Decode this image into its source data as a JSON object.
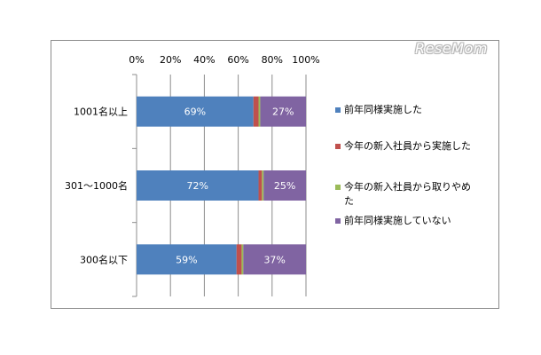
{
  "watermark": "ReseMom",
  "chart_data": {
    "type": "bar",
    "orientation": "horizontal",
    "stacked": true,
    "categories": [
      "1001名以上",
      "301～1000名",
      "300名以下"
    ],
    "series": [
      {
        "name": "前年同様実施した",
        "values": [
          69,
          72,
          59
        ],
        "labels": [
          "69%",
          "72%",
          "59%"
        ],
        "color": "#4f81bd"
      },
      {
        "name": "今年の新入社員から実施した",
        "values": [
          3,
          2,
          3
        ],
        "labels": [
          "",
          "",
          ""
        ],
        "color": "#c0504d"
      },
      {
        "name": "今年の新入社員から取りやめた",
        "values": [
          1,
          1,
          1
        ],
        "labels": [
          "",
          "",
          ""
        ],
        "color": "#9bbb59"
      },
      {
        "name": "前年同様実施していない",
        "values": [
          27,
          25,
          37
        ],
        "labels": [
          "27%",
          "25%",
          "37%"
        ],
        "color": "#8064a2"
      }
    ],
    "xlim": [
      0,
      100
    ],
    "x_ticks": [
      "0%",
      "20%",
      "40%",
      "60%",
      "80%",
      "100%"
    ],
    "grid": true,
    "legend_position": "right",
    "title": "",
    "xlabel": "",
    "ylabel": ""
  },
  "legend": {
    "items": [
      {
        "label": "前年同様実施した",
        "color": "#4f81bd"
      },
      {
        "label": "今年の新入社員から実施した",
        "color": "#c0504d"
      },
      {
        "label": "今年の新入社員から取りやめた",
        "color": "#9bbb59"
      },
      {
        "label": "前年同様実施していない",
        "color": "#8064a2"
      }
    ]
  }
}
